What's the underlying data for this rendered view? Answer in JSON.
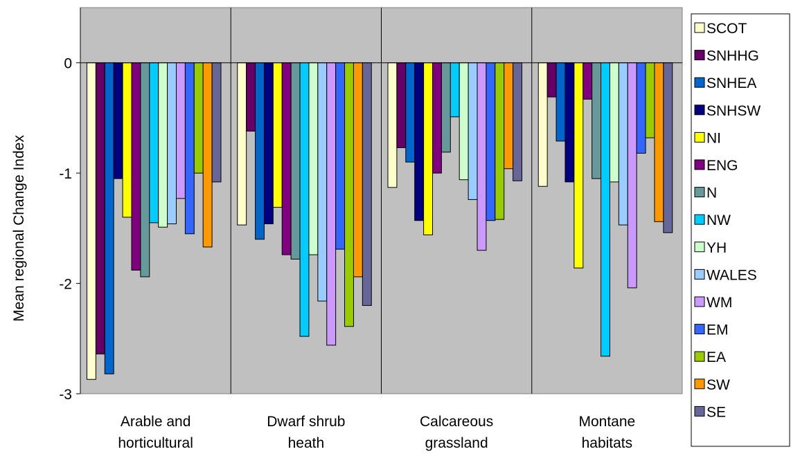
{
  "chart_data": {
    "type": "bar",
    "title": "",
    "xlabel": "",
    "ylabel": "Mean regional Change Index",
    "ylim": [
      -3,
      0.5
    ],
    "yticks": [
      0,
      -1,
      -2,
      -3
    ],
    "grid": false,
    "legend_position": "right",
    "plot_background": "#C0C0C0",
    "categories": [
      "Arable and horticultural",
      "Dwarf shrub heath",
      "Calcareous grassland",
      "Montane habitats"
    ],
    "category_lines": [
      [
        "Arable and",
        "horticultural"
      ],
      [
        "Dwarf shrub",
        "heath"
      ],
      [
        "Calcareous",
        "grassland"
      ],
      [
        "Montane",
        "habitats"
      ]
    ],
    "series": [
      {
        "name": "SCOT",
        "color": "#FFFFCC",
        "values": [
          -2.87,
          -1.47,
          -1.13,
          -1.12
        ]
      },
      {
        "name": "SNHHG",
        "color": "#660066",
        "values": [
          -2.64,
          -0.62,
          -0.77,
          -0.31
        ]
      },
      {
        "name": "SNHEA",
        "color": "#0066CC",
        "values": [
          -2.82,
          -1.6,
          -0.9,
          -0.71
        ]
      },
      {
        "name": "SNHSW",
        "color": "#000080",
        "values": [
          -1.05,
          -1.46,
          -1.43,
          -1.08
        ]
      },
      {
        "name": "NI",
        "color": "#FFFF00",
        "values": [
          -1.4,
          -1.31,
          -1.56,
          -1.86
        ]
      },
      {
        "name": "ENG",
        "color": "#800080",
        "values": [
          -1.88,
          -1.74,
          -1.0,
          -0.33
        ]
      },
      {
        "name": "N",
        "color": "#669999",
        "values": [
          -1.94,
          -1.78,
          -0.81,
          -1.05
        ]
      },
      {
        "name": "NW",
        "color": "#00CCFF",
        "values": [
          -1.45,
          -2.48,
          -0.49,
          -2.66
        ]
      },
      {
        "name": "YH",
        "color": "#CCFFCC",
        "values": [
          -1.49,
          -1.74,
          -1.06,
          -1.08
        ]
      },
      {
        "name": "WALES",
        "color": "#99CCFF",
        "values": [
          -1.46,
          -2.16,
          -1.24,
          -1.47
        ]
      },
      {
        "name": "WM",
        "color": "#CC99FF",
        "values": [
          -1.23,
          -2.56,
          -1.7,
          -2.04
        ]
      },
      {
        "name": "EM",
        "color": "#3366FF",
        "values": [
          -1.55,
          -1.69,
          -1.43,
          -0.82
        ]
      },
      {
        "name": "EA",
        "color": "#99CC00",
        "values": [
          -1.0,
          -2.39,
          -1.42,
          -0.68
        ]
      },
      {
        "name": "SW",
        "color": "#FF9900",
        "values": [
          -1.67,
          -1.94,
          -0.96,
          -1.44
        ]
      },
      {
        "name": "SE",
        "color": "#666699",
        "values": [
          -1.08,
          -2.2,
          -1.07,
          -1.54
        ]
      }
    ]
  }
}
